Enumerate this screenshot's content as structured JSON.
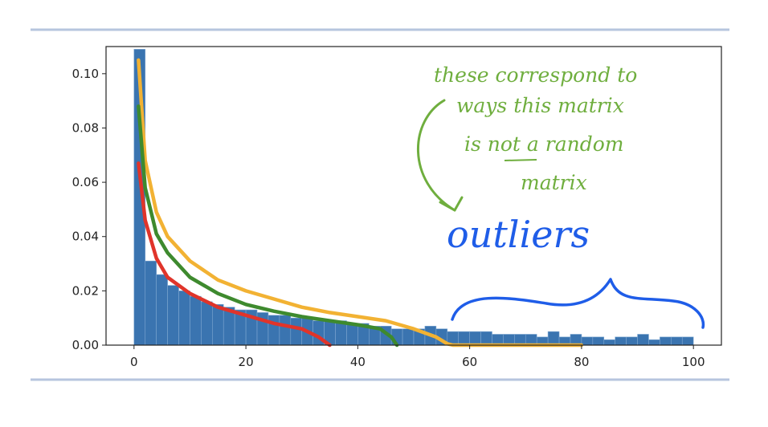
{
  "chart_data": {
    "type": "bar",
    "title": "",
    "xlabel": "",
    "ylabel": "",
    "xlim": [
      -5,
      105
    ],
    "ylim": [
      0,
      0.11
    ],
    "grid": false,
    "xticks": [
      0,
      20,
      40,
      60,
      80,
      100
    ],
    "xtick_labels": [
      "0",
      "20",
      "40",
      "60",
      "80",
      "100"
    ],
    "yticks": [
      0.0,
      0.02,
      0.04,
      0.06,
      0.08,
      0.1
    ],
    "ytick_labels": [
      "0.00",
      "0.02",
      "0.04",
      "0.06",
      "0.08",
      "0.10"
    ],
    "histogram": {
      "color": "#3a74b0",
      "edge_color": "#7fa7d1",
      "bins": [
        [
          0.0,
          2.0,
          0.109
        ],
        [
          2.0,
          4.0,
          0.031
        ],
        [
          4.0,
          6.0,
          0.026
        ],
        [
          6.0,
          8.0,
          0.022
        ],
        [
          8.0,
          10.0,
          0.02
        ],
        [
          10.0,
          12.0,
          0.018
        ],
        [
          12.0,
          14.0,
          0.016
        ],
        [
          14.0,
          16.0,
          0.015
        ],
        [
          16.0,
          18.0,
          0.014
        ],
        [
          18.0,
          20.0,
          0.013
        ],
        [
          20.0,
          22.0,
          0.013
        ],
        [
          22.0,
          24.0,
          0.012
        ],
        [
          24.0,
          26.0,
          0.011
        ],
        [
          26.0,
          28.0,
          0.011
        ],
        [
          28.0,
          30.0,
          0.01
        ],
        [
          30.0,
          32.0,
          0.01
        ],
        [
          32.0,
          34.0,
          0.009
        ],
        [
          34.0,
          36.0,
          0.009
        ],
        [
          36.0,
          38.0,
          0.009
        ],
        [
          38.0,
          40.0,
          0.008
        ],
        [
          40.0,
          42.0,
          0.008
        ],
        [
          42.0,
          44.0,
          0.007
        ],
        [
          44.0,
          46.0,
          0.007
        ],
        [
          46.0,
          48.0,
          0.006
        ],
        [
          48.0,
          50.0,
          0.006
        ],
        [
          50.0,
          52.0,
          0.006
        ],
        [
          52.0,
          54.0,
          0.007
        ],
        [
          54.0,
          56.0,
          0.006
        ],
        [
          56.0,
          58.0,
          0.005
        ],
        [
          58.0,
          60.0,
          0.005
        ],
        [
          60.0,
          62.0,
          0.005
        ],
        [
          62.0,
          64.0,
          0.005
        ],
        [
          64.0,
          66.0,
          0.004
        ],
        [
          66.0,
          68.0,
          0.004
        ],
        [
          68.0,
          70.0,
          0.004
        ],
        [
          70.0,
          72.0,
          0.004
        ],
        [
          72.0,
          74.0,
          0.003
        ],
        [
          74.0,
          76.0,
          0.005
        ],
        [
          76.0,
          78.0,
          0.003
        ],
        [
          78.0,
          80.0,
          0.004
        ],
        [
          80.0,
          82.0,
          0.003
        ],
        [
          82.0,
          84.0,
          0.003
        ],
        [
          84.0,
          86.0,
          0.002
        ],
        [
          86.0,
          88.0,
          0.003
        ],
        [
          88.0,
          90.0,
          0.003
        ],
        [
          90.0,
          92.0,
          0.004
        ],
        [
          92.0,
          94.0,
          0.002
        ],
        [
          94.0,
          96.0,
          0.003
        ],
        [
          96.0,
          98.0,
          0.003
        ],
        [
          98.0,
          100.0,
          0.003
        ]
      ]
    },
    "series": [
      {
        "type": "line",
        "color": "#f2b233",
        "points": [
          [
            0.8,
            0.105
          ],
          [
            2,
            0.068
          ],
          [
            4,
            0.049
          ],
          [
            6,
            0.04
          ],
          [
            10,
            0.031
          ],
          [
            15,
            0.024
          ],
          [
            20,
            0.02
          ],
          [
            25,
            0.017
          ],
          [
            30,
            0.014
          ],
          [
            35,
            0.012
          ],
          [
            40,
            0.0105
          ],
          [
            45,
            0.009
          ],
          [
            50,
            0.006
          ],
          [
            54,
            0.003
          ],
          [
            56,
            0.0005
          ],
          [
            57,
            0
          ],
          [
            80,
            0
          ]
        ]
      },
      {
        "type": "line",
        "color": "#3e8a2e",
        "points": [
          [
            0.8,
            0.088
          ],
          [
            2,
            0.058
          ],
          [
            4,
            0.041
          ],
          [
            6,
            0.034
          ],
          [
            10,
            0.025
          ],
          [
            15,
            0.019
          ],
          [
            20,
            0.015
          ],
          [
            25,
            0.0125
          ],
          [
            30,
            0.0105
          ],
          [
            35,
            0.009
          ],
          [
            40,
            0.0075
          ],
          [
            44,
            0.006
          ],
          [
            46,
            0.003
          ],
          [
            47,
            0
          ]
        ]
      },
      {
        "type": "line",
        "color": "#e0342a",
        "points": [
          [
            0.8,
            0.067
          ],
          [
            2,
            0.046
          ],
          [
            4,
            0.032
          ],
          [
            6,
            0.025
          ],
          [
            10,
            0.019
          ],
          [
            15,
            0.014
          ],
          [
            20,
            0.011
          ],
          [
            25,
            0.008
          ],
          [
            30,
            0.006
          ],
          [
            33,
            0.003
          ],
          [
            35,
            0
          ]
        ]
      }
    ]
  },
  "annotations": {
    "green_lines": [
      "these correspond to",
      "ways this matrix",
      "is not a random",
      "matrix"
    ],
    "blue_label": "outliers",
    "green_color": "#6fae3e",
    "blue_color": "#1f5de8"
  },
  "rule_color": "#b6c5de"
}
